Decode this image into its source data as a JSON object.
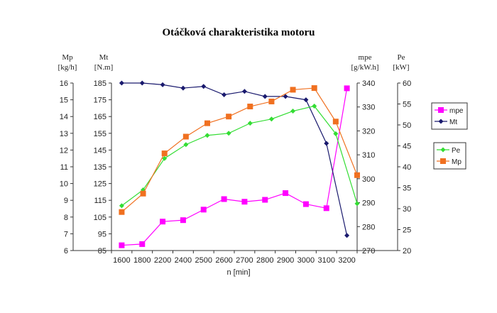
{
  "chart_data": {
    "type": "line",
    "title": "Otáčková charakteristika motoru",
    "xlabel": "n [min]",
    "categories": [
      "1600",
      "1800",
      "2200",
      "2400",
      "2500",
      "2600",
      "2700",
      "2800",
      "2900",
      "3000",
      "3100",
      "3200"
    ],
    "axes": {
      "Mp": {
        "label": [
          "Mp",
          "[kg/h]"
        ],
        "range": [
          6,
          16
        ],
        "ticks": [
          6,
          7,
          8,
          9,
          10,
          11,
          12,
          13,
          14,
          15,
          16
        ],
        "side": "left-outer"
      },
      "Mt": {
        "label": [
          "Mt",
          "[N.m]"
        ],
        "range": [
          85,
          185
        ],
        "ticks": [
          85,
          95,
          105,
          115,
          125,
          135,
          145,
          155,
          165,
          175,
          185
        ],
        "side": "left-inner"
      },
      "mpe": {
        "label": [
          "mpe",
          "[g/kW.h]"
        ],
        "range": [
          270,
          340
        ],
        "ticks": [
          270,
          280,
          290,
          300,
          310,
          320,
          330,
          340
        ],
        "side": "right-inner"
      },
      "Pe": {
        "label": [
          "Pe",
          "[kW]"
        ],
        "range": [
          20,
          60
        ],
        "ticks": [
          20,
          25,
          30,
          35,
          40,
          45,
          50,
          55,
          60
        ],
        "side": "right-outer"
      }
    },
    "series": [
      {
        "name": "mpe",
        "axis": "mpe",
        "color": "#ff00ff",
        "marker": "square",
        "values": [
          272.2,
          272.7,
          282.1,
          282.7,
          287.1,
          291.5,
          290.4,
          291.2,
          294.0,
          289.4,
          287.7,
          337.8
        ]
      },
      {
        "name": "Mt",
        "axis": "Mt",
        "color": "#1a1a6e",
        "marker": "diamond",
        "values": [
          185,
          185,
          184,
          182,
          183,
          178,
          180,
          177,
          177,
          175,
          149,
          94
        ]
      },
      {
        "name": "Pe",
        "axis": "Pe",
        "color": "#33dd33",
        "marker": "diamond",
        "values": [
          30.7,
          34.5,
          42.0,
          45.3,
          47.5,
          48.0,
          50.4,
          51.4,
          53.3,
          54.5,
          47.9,
          31.2
        ]
      },
      {
        "name": "Mp",
        "axis": "Mp",
        "color": "#f07020",
        "marker": "square",
        "values": [
          8.3,
          9.4,
          11.8,
          12.8,
          13.6,
          14.0,
          14.6,
          14.9,
          15.6,
          15.7,
          13.7,
          10.5
        ]
      }
    ],
    "legends": [
      [
        "mpe",
        "Mt"
      ],
      [
        "Pe",
        "Mp"
      ]
    ],
    "legend_position": "right",
    "grid": false
  }
}
